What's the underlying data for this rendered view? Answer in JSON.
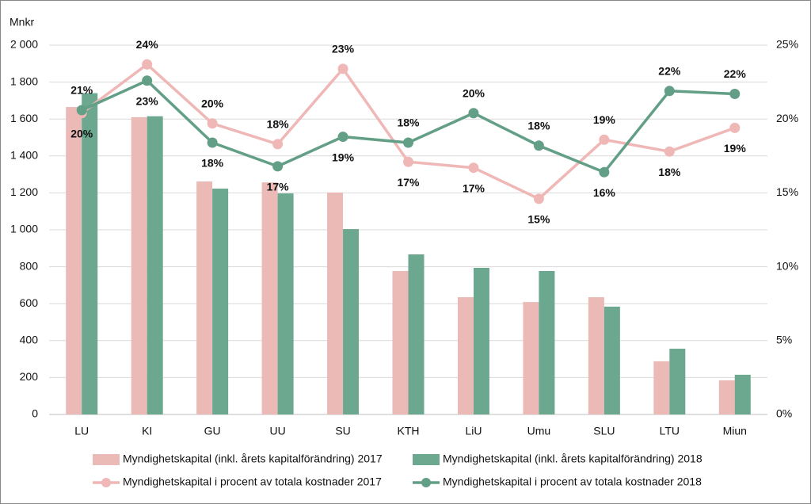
{
  "chart_data": {
    "type": "bar-line",
    "y_label": "Mnkr",
    "categories": [
      "LU",
      "KI",
      "GU",
      "UU",
      "SU",
      "KTH",
      "LiU",
      "Umu",
      "SLU",
      "LTU",
      "Miun"
    ],
    "series": [
      {
        "name": "Myndighetskapital (inkl. årets kapitalförändring) 2017",
        "type": "bar",
        "color": "#ebb9b6",
        "values": [
          1665,
          1610,
          1262,
          1257,
          1202,
          777,
          635,
          609,
          635,
          288,
          185
        ]
      },
      {
        "name": "Myndighetskapital (inkl. årets kapitalförändring) 2018",
        "type": "bar",
        "color": "#6ba88f",
        "values": [
          1740,
          1615,
          1223,
          1197,
          1004,
          867,
          794,
          777,
          584,
          356,
          215
        ]
      },
      {
        "name": "Myndighetskapital i procent av totala kostnader 2017",
        "type": "line",
        "axis": "y2",
        "color": "#efb7b5",
        "values": [
          20.4,
          23.7,
          19.7,
          18.3,
          23.4,
          17.1,
          16.7,
          14.6,
          18.6,
          17.8,
          19.4
        ],
        "value_labels": [
          "20%",
          "24%",
          "20%",
          "18%",
          "23%",
          "17%",
          "17%",
          "15%",
          "19%",
          "18%",
          "19%"
        ]
      },
      {
        "name": "Myndighetskapital i procent av totala kostnader 2018",
        "type": "line",
        "axis": "y2",
        "color": "#629f86",
        "values": [
          20.6,
          22.6,
          18.4,
          16.8,
          18.8,
          18.4,
          20.4,
          18.2,
          16.4,
          21.9,
          21.7
        ],
        "value_labels": [
          "21%",
          "23%",
          "18%",
          "17%",
          "19%",
          "18%",
          "20%",
          "18%",
          "16%",
          "22%",
          "22%"
        ]
      }
    ],
    "ylim": [
      0,
      2000
    ],
    "yticks": [
      0,
      200,
      400,
      600,
      800,
      {
        "value": 1000,
        "label": "1 000"
      },
      {
        "value": 1200,
        "label": "1 200"
      },
      {
        "value": 1400,
        "label": "1 400"
      },
      {
        "value": 1600,
        "label": "1 600"
      },
      {
        "value": 1800,
        "label": "1 800"
      },
      {
        "value": 2000,
        "label": "2 000"
      }
    ],
    "y2lim": [
      0,
      25
    ],
    "y2ticks": [
      {
        "value": 0,
        "label": "0%"
      },
      {
        "value": 5,
        "label": "5%"
      },
      {
        "value": 10,
        "label": "10%"
      },
      {
        "value": 15,
        "label": "15%"
      },
      {
        "value": 20,
        "label": "20%"
      },
      {
        "value": 25,
        "label": "25%"
      }
    ],
    "grid": true
  }
}
